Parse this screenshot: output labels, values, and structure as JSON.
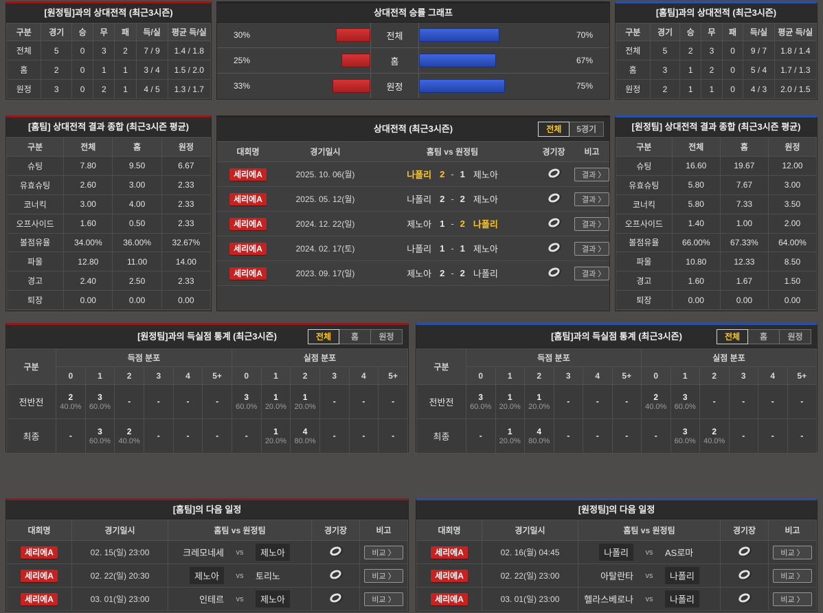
{
  "colors": {
    "red_accent": "#8e1a1a",
    "blue_accent": "#2a4fa4",
    "red_bar": "#c22828",
    "blue_bar": "#2b50c8",
    "win_yellow": "#ffc61a",
    "badge_red": "#c52222"
  },
  "away_h2h_record": {
    "title": "[원정팀]과의 상대전적 (최근3시즌)",
    "headers": [
      "구분",
      "경기",
      "승",
      "무",
      "패",
      "득/실",
      "평균 득/실"
    ],
    "rows": [
      {
        "label": "전체",
        "cells": [
          "5",
          "0",
          "3",
          "2",
          "7 / 9",
          "1.4 / 1.8"
        ]
      },
      {
        "label": "홈",
        "cells": [
          "2",
          "0",
          "1",
          "1",
          "3 / 4",
          "1.5 / 2.0"
        ]
      },
      {
        "label": "원정",
        "cells": [
          "3",
          "0",
          "2",
          "1",
          "4 / 5",
          "1.3 / 1.7"
        ]
      }
    ]
  },
  "winrate_graph": {
    "title": "상대전적 승률 그래프",
    "rows": [
      {
        "label": "전체",
        "left_value": 30,
        "left_label": "30%",
        "right_value": 70,
        "right_label": "70%"
      },
      {
        "label": "홈",
        "left_value": 25,
        "left_label": "25%",
        "right_value": 67,
        "right_label": "67%"
      },
      {
        "label": "원정",
        "left_value": 33,
        "left_label": "33%",
        "right_value": 75,
        "right_label": "75%"
      }
    ]
  },
  "home_h2h_record": {
    "title": "[홈팀]과의 상대전적 (최근3시즌)",
    "headers": [
      "구분",
      "경기",
      "승",
      "무",
      "패",
      "득/실",
      "평균 득/실"
    ],
    "rows": [
      {
        "label": "전체",
        "cells": [
          "5",
          "2",
          "3",
          "0",
          "9 / 7",
          "1.8 / 1.4"
        ]
      },
      {
        "label": "홈",
        "cells": [
          "3",
          "1",
          "2",
          "0",
          "5 / 4",
          "1.7 / 1.3"
        ]
      },
      {
        "label": "원정",
        "cells": [
          "2",
          "1",
          "1",
          "0",
          "4 / 3",
          "2.0 / 1.5"
        ]
      }
    ]
  },
  "home_summary": {
    "title": "[홈팀] 상대전적 결과 종합 (최근3시즌 평균)",
    "headers": [
      "구분",
      "전체",
      "홈",
      "원정"
    ],
    "rows": [
      {
        "label": "슈팅",
        "cells": [
          "7.80",
          "9.50",
          "6.67"
        ]
      },
      {
        "label": "유효슈팅",
        "cells": [
          "2.60",
          "3.00",
          "2.33"
        ]
      },
      {
        "label": "코너킥",
        "cells": [
          "3.00",
          "4.00",
          "2.33"
        ]
      },
      {
        "label": "오프사이드",
        "cells": [
          "1.60",
          "0.50",
          "2.33"
        ]
      },
      {
        "label": "볼점유율",
        "cells": [
          "34.00%",
          "36.00%",
          "32.67%"
        ]
      },
      {
        "label": "파울",
        "cells": [
          "12.80",
          "11.00",
          "14.00"
        ]
      },
      {
        "label": "경고",
        "cells": [
          "2.40",
          "2.50",
          "2.33"
        ]
      },
      {
        "label": "퇴장",
        "cells": [
          "0.00",
          "0.00",
          "0.00"
        ]
      }
    ]
  },
  "h2h_matches": {
    "title": "상대전적 (최근3시즌)",
    "tabs": [
      {
        "label": "전체",
        "active": true
      },
      {
        "label": "5경기",
        "active": false
      }
    ],
    "headers": [
      "대회명",
      "경기일시",
      "홈팀 vs 원정팀",
      "경기장",
      "비고"
    ],
    "result_button": "결과 〉",
    "rows": [
      {
        "league": "세리에A",
        "date": "2025. 10. 06(월)",
        "home": "나폴리",
        "home_score": "2",
        "away_score": "1",
        "away": "제노아",
        "home_win": true,
        "away_win": false
      },
      {
        "league": "세리에A",
        "date": "2025. 05. 12(월)",
        "home": "나폴리",
        "home_score": "2",
        "away_score": "2",
        "away": "제노아",
        "home_win": false,
        "away_win": false
      },
      {
        "league": "세리에A",
        "date": "2024. 12. 22(일)",
        "home": "제노아",
        "home_score": "1",
        "away_score": "2",
        "away": "나폴리",
        "home_win": false,
        "away_win": true
      },
      {
        "league": "세리에A",
        "date": "2024. 02. 17(토)",
        "home": "나폴리",
        "home_score": "1",
        "away_score": "1",
        "away": "제노아",
        "home_win": false,
        "away_win": false
      },
      {
        "league": "세리에A",
        "date": "2023. 09. 17(일)",
        "home": "제노아",
        "home_score": "2",
        "away_score": "2",
        "away": "나폴리",
        "home_win": false,
        "away_win": false
      }
    ]
  },
  "away_summary": {
    "title": "[원정팀] 상대전적 결과 종합 (최근3시즌 평균)",
    "headers": [
      "구분",
      "전체",
      "홈",
      "원정"
    ],
    "rows": [
      {
        "label": "슈팅",
        "cells": [
          "16.60",
          "19.67",
          "12.00"
        ]
      },
      {
        "label": "유효슈팅",
        "cells": [
          "5.80",
          "7.67",
          "3.00"
        ]
      },
      {
        "label": "코너킥",
        "cells": [
          "5.80",
          "7.33",
          "3.50"
        ]
      },
      {
        "label": "오프사이드",
        "cells": [
          "1.40",
          "1.00",
          "2.00"
        ]
      },
      {
        "label": "볼점유율",
        "cells": [
          "66.00%",
          "67.33%",
          "64.00%"
        ]
      },
      {
        "label": "파울",
        "cells": [
          "10.80",
          "12.33",
          "8.50"
        ]
      },
      {
        "label": "경고",
        "cells": [
          "1.60",
          "1.67",
          "1.50"
        ]
      },
      {
        "label": "퇴장",
        "cells": [
          "0.00",
          "0.00",
          "0.00"
        ]
      }
    ]
  },
  "away_goal_stats": {
    "title": "[원정팀]과의 득실점 통계 (최근3시즌)",
    "tabs": [
      {
        "label": "전체",
        "active": true
      },
      {
        "label": "홈",
        "active": false
      },
      {
        "label": "원정",
        "active": false
      }
    ],
    "corner_header": "구분",
    "group_headers": [
      "득점 분포",
      "실점 분포"
    ],
    "cols": [
      "0",
      "1",
      "2",
      "3",
      "4",
      "5+"
    ],
    "rows": [
      {
        "label": "전반전",
        "scored": [
          {
            "n": "2",
            "p": "40.0%"
          },
          {
            "n": "3",
            "p": "60.0%"
          },
          {
            "n": "-"
          },
          {
            "n": "-"
          },
          {
            "n": "-"
          },
          {
            "n": "-"
          }
        ],
        "conceded": [
          {
            "n": "3",
            "p": "60.0%"
          },
          {
            "n": "1",
            "p": "20.0%"
          },
          {
            "n": "1",
            "p": "20.0%"
          },
          {
            "n": "-"
          },
          {
            "n": "-"
          },
          {
            "n": "-"
          }
        ]
      },
      {
        "label": "최종",
        "scored": [
          {
            "n": "-"
          },
          {
            "n": "3",
            "p": "60.0%"
          },
          {
            "n": "2",
            "p": "40.0%"
          },
          {
            "n": "-"
          },
          {
            "n": "-"
          },
          {
            "n": "-"
          }
        ],
        "conceded": [
          {
            "n": "-"
          },
          {
            "n": "1",
            "p": "20.0%"
          },
          {
            "n": "4",
            "p": "80.0%"
          },
          {
            "n": "-"
          },
          {
            "n": "-"
          },
          {
            "n": "-"
          }
        ]
      }
    ]
  },
  "home_goal_stats": {
    "title": "[홈팀]과의 득실점 통계 (최근3시즌)",
    "tabs": [
      {
        "label": "전체",
        "active": true
      },
      {
        "label": "홈",
        "active": false
      },
      {
        "label": "원정",
        "active": false
      }
    ],
    "corner_header": "구분",
    "group_headers": [
      "득점 분포",
      "실점 분포"
    ],
    "cols": [
      "0",
      "1",
      "2",
      "3",
      "4",
      "5+"
    ],
    "rows": [
      {
        "label": "전반전",
        "scored": [
          {
            "n": "3",
            "p": "60.0%"
          },
          {
            "n": "1",
            "p": "20.0%"
          },
          {
            "n": "1",
            "p": "20.0%"
          },
          {
            "n": "-"
          },
          {
            "n": "-"
          },
          {
            "n": "-"
          }
        ],
        "conceded": [
          {
            "n": "2",
            "p": "40.0%"
          },
          {
            "n": "3",
            "p": "60.0%"
          },
          {
            "n": "-"
          },
          {
            "n": "-"
          },
          {
            "n": "-"
          },
          {
            "n": "-"
          }
        ]
      },
      {
        "label": "최종",
        "scored": [
          {
            "n": "-"
          },
          {
            "n": "1",
            "p": "20.0%"
          },
          {
            "n": "4",
            "p": "80.0%"
          },
          {
            "n": "-"
          },
          {
            "n": "-"
          },
          {
            "n": "-"
          }
        ],
        "conceded": [
          {
            "n": "-"
          },
          {
            "n": "3",
            "p": "60.0%"
          },
          {
            "n": "2",
            "p": "40.0%"
          },
          {
            "n": "-"
          },
          {
            "n": "-"
          },
          {
            "n": "-"
          }
        ]
      }
    ]
  },
  "home_schedule": {
    "title": "[홈팀]의 다음 일정",
    "headers": [
      "대회명",
      "경기일시",
      "홈팀 vs 원정팀",
      "경기장",
      "비고"
    ],
    "vs_label": "vs",
    "compare_button": "비교 〉",
    "rows": [
      {
        "league": "세리에A",
        "date": "02. 15(일) 23:00",
        "home": "크레모네세",
        "away": "제노아",
        "home_hl": false,
        "away_hl": true
      },
      {
        "league": "세리에A",
        "date": "02. 22(일) 20:30",
        "home": "제노아",
        "away": "토리노",
        "home_hl": true,
        "away_hl": false
      },
      {
        "league": "세리에A",
        "date": "03. 01(일) 23:00",
        "home": "인테르",
        "away": "제노아",
        "home_hl": false,
        "away_hl": true
      }
    ]
  },
  "away_schedule": {
    "title": "[원정팀]의 다음 일정",
    "headers": [
      "대회명",
      "경기일시",
      "홈팀 vs 원정팀",
      "경기장",
      "비고"
    ],
    "vs_label": "vs",
    "compare_button": "비교 〉",
    "rows": [
      {
        "league": "세리에A",
        "date": "02. 16(월) 04:45",
        "home": "나폴리",
        "away": "AS로마",
        "home_hl": true,
        "away_hl": false
      },
      {
        "league": "세리에A",
        "date": "02. 22(일) 23:00",
        "home": "아탈란타",
        "away": "나폴리",
        "home_hl": false,
        "away_hl": true
      },
      {
        "league": "세리에A",
        "date": "03. 01(일) 23:00",
        "home": "헬라스베로나",
        "away": "나폴리",
        "home_hl": false,
        "away_hl": true
      }
    ]
  }
}
